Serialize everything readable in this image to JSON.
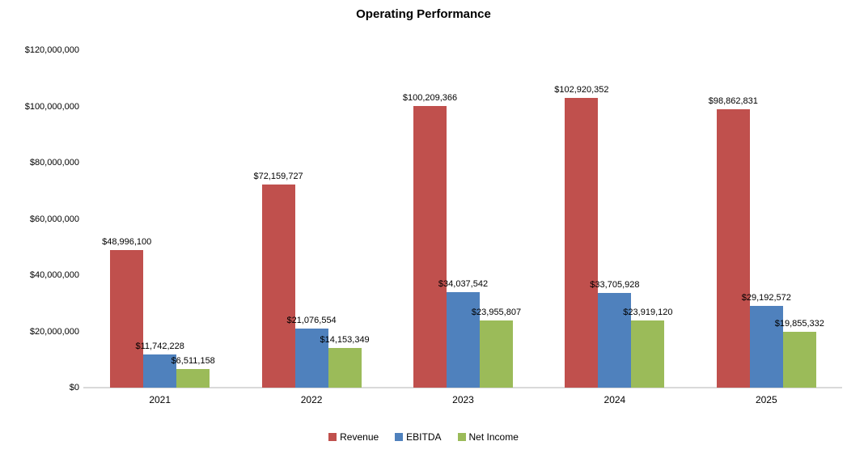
{
  "chart_data": {
    "type": "bar",
    "title": "Operating Performance",
    "categories": [
      "2021",
      "2022",
      "2023",
      "2024",
      "2025"
    ],
    "series": [
      {
        "name": "Revenue",
        "color": "#C0504D",
        "values": [
          48996100,
          72159727,
          100209366,
          102920352,
          98862831
        ],
        "labels": [
          "$48,996,100",
          "$72,159,727",
          "$100,209,366",
          "$102,920,352",
          "$98,862,831"
        ]
      },
      {
        "name": "EBITDA",
        "color": "#4F81BD",
        "values": [
          11742228,
          21076554,
          34037542,
          33705928,
          29192572
        ],
        "labels": [
          "$11,742,228",
          "$21,076,554",
          "$34,037,542",
          "$33,705,928",
          "$29,192,572"
        ]
      },
      {
        "name": "Net Income",
        "color": "#9BBB59",
        "values": [
          6511158,
          14153349,
          23955807,
          23919120,
          19855332
        ],
        "labels": [
          "$6,511,158",
          "$14,153,349",
          "$23,955,807",
          "$23,919,120",
          "$19,855,332"
        ]
      }
    ],
    "xlabel": "",
    "ylabel": "",
    "ylim": [
      0,
      120000000
    ],
    "y_ticks": [
      {
        "value": 0,
        "label": "$0"
      },
      {
        "value": 20000000,
        "label": "$20,000,000"
      },
      {
        "value": 40000000,
        "label": "$40,000,000"
      },
      {
        "value": 60000000,
        "label": "$60,000,000"
      },
      {
        "value": 80000000,
        "label": "$80,000,000"
      },
      {
        "value": 100000000,
        "label": "$100,000,000"
      },
      {
        "value": 120000000,
        "label": "$120,000,000"
      }
    ],
    "grid": false,
    "data_labels": true,
    "legend_position": "bottom",
    "axis_line_color": "#D9D9D9",
    "background_color": "#FFFFFF",
    "text_color": "#000000"
  }
}
